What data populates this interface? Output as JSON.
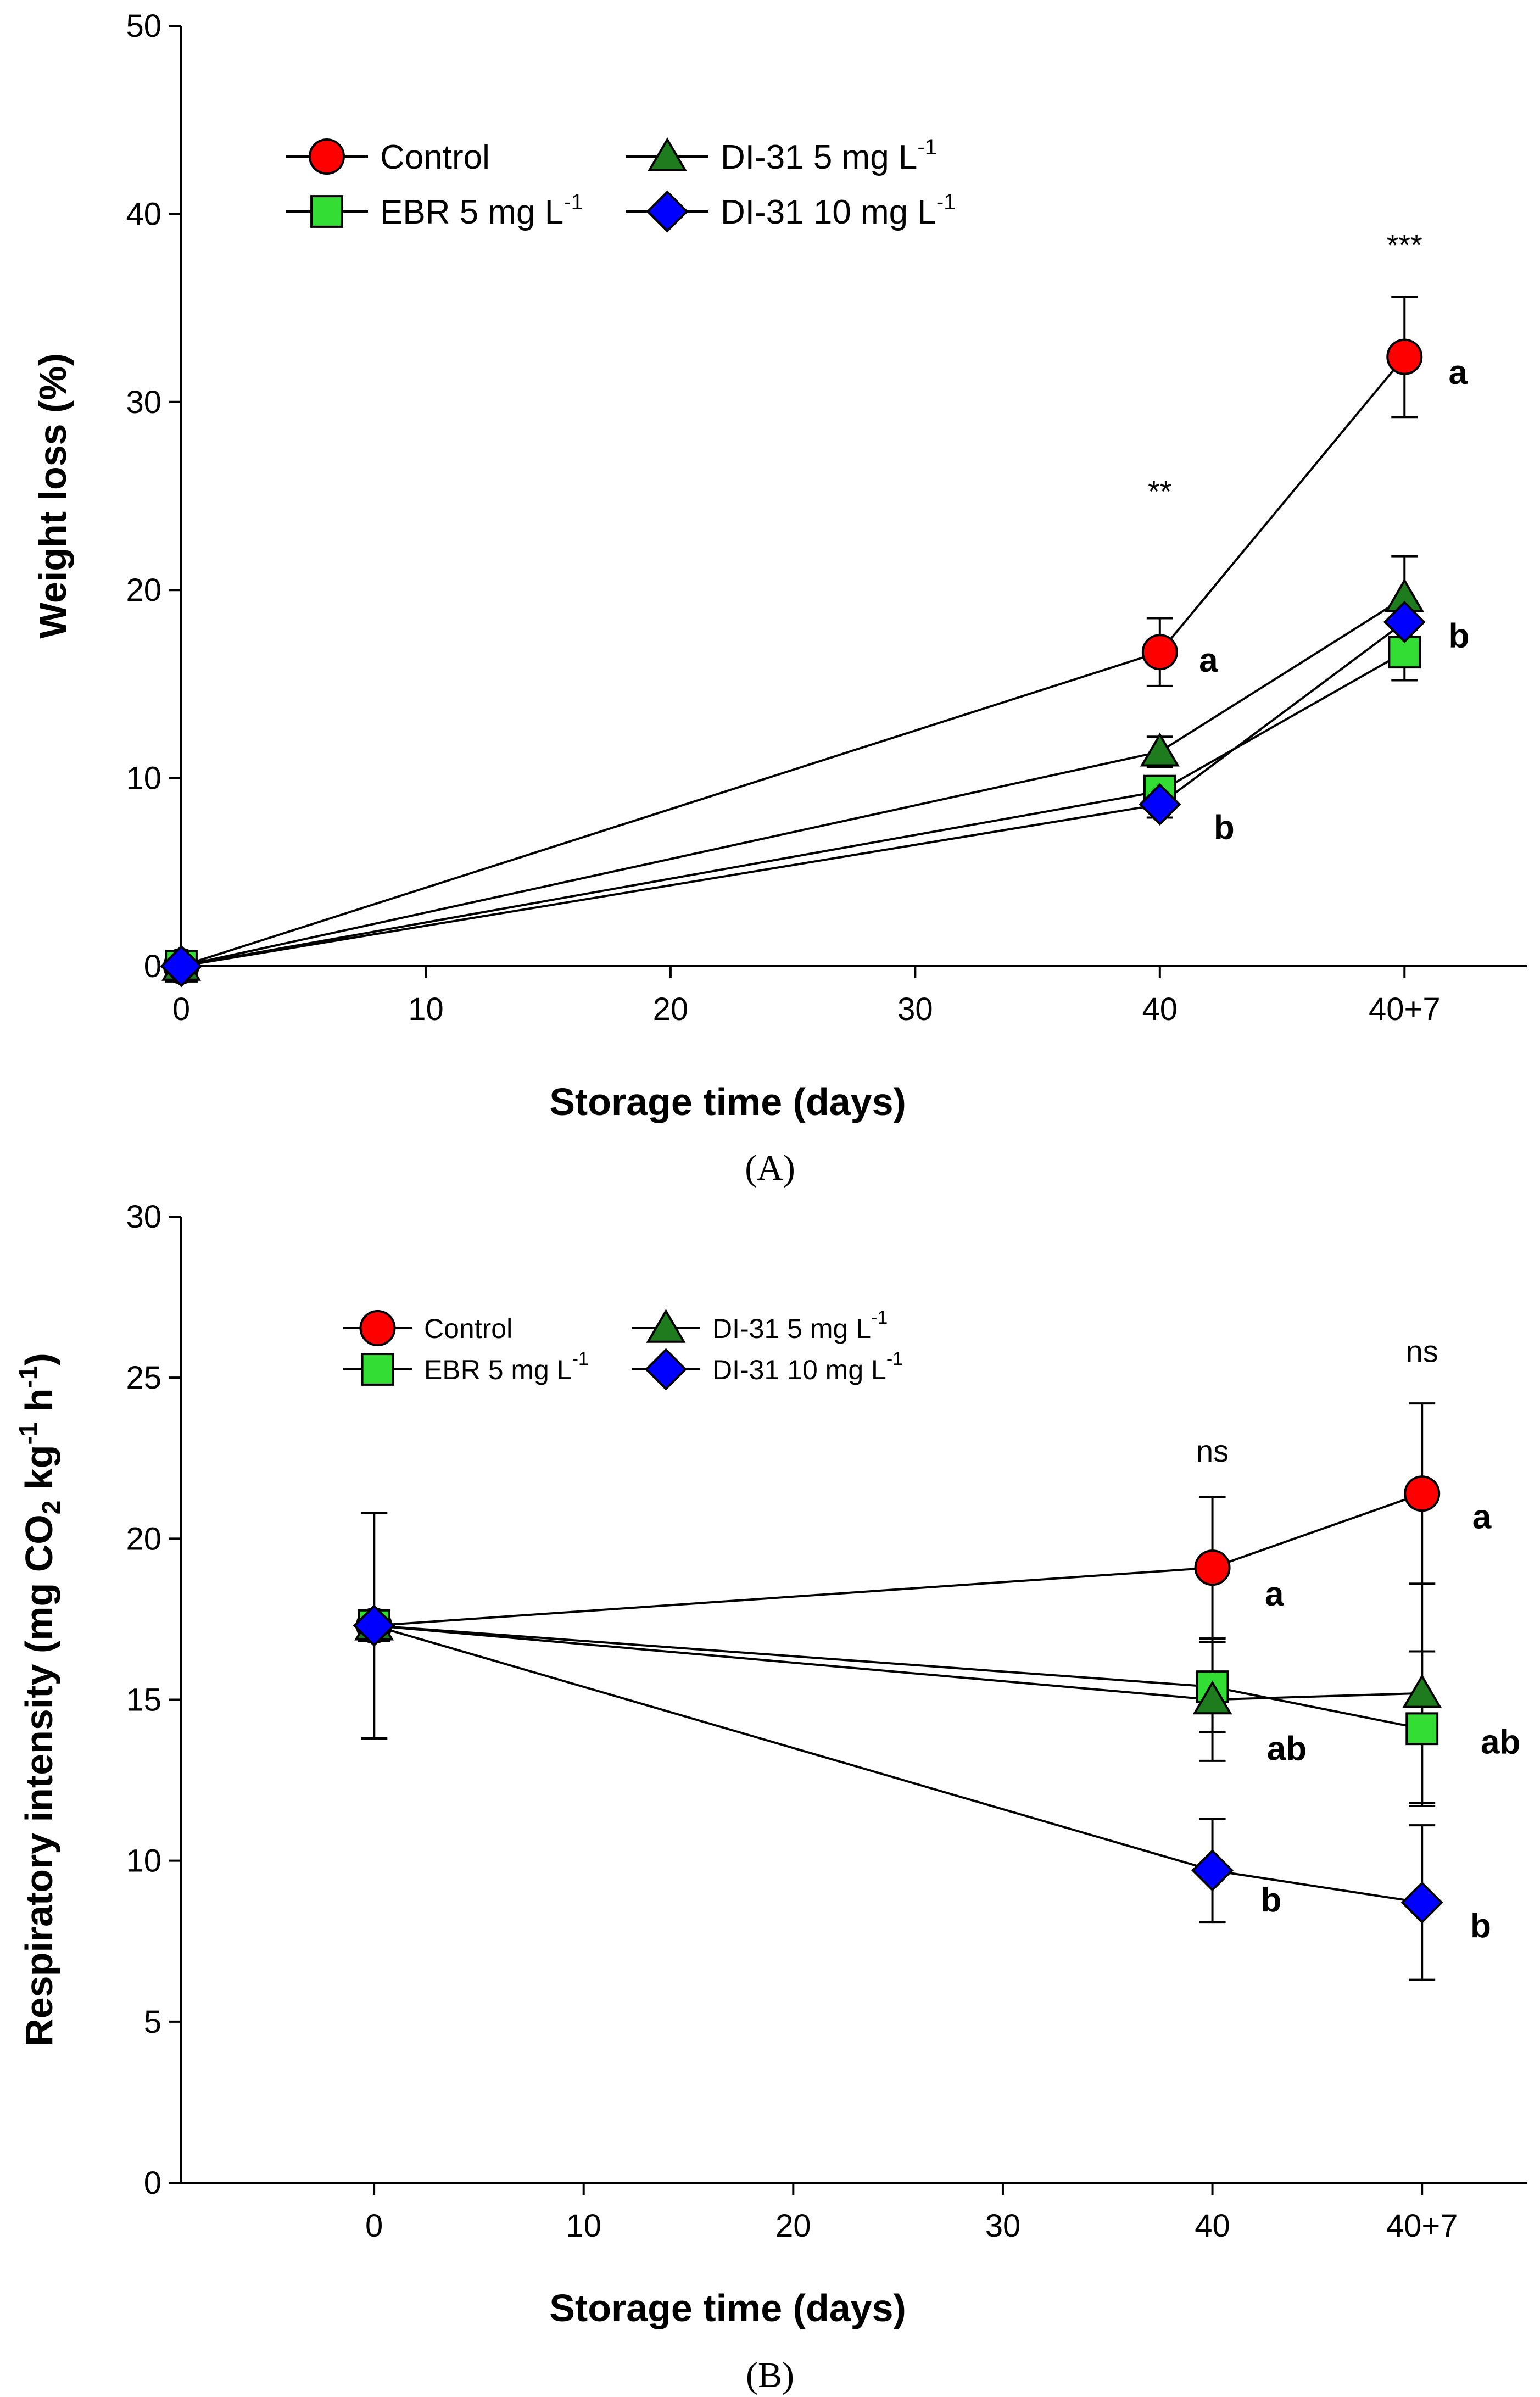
{
  "chart_data": [
    {
      "type": "line",
      "panel_label": "(A)",
      "panel_label_letter": "A",
      "xlabel": "Storage time (days)",
      "ylabel": "Weight loss (%)",
      "ylim": [
        0,
        50
      ],
      "y_ticks": [
        0,
        10,
        20,
        30,
        40,
        50
      ],
      "xlim": [
        0,
        55
      ],
      "x_ticks": [
        0,
        10,
        20,
        30,
        40,
        50
      ],
      "x_tick_labels": [
        "0",
        "10",
        "20",
        "30",
        "40",
        "40+7"
      ],
      "x": [
        0,
        40,
        50
      ],
      "series": [
        {
          "name": "Control",
          "marker": "circle",
          "color": "#ff0000",
          "values": [
            0,
            16.7,
            32.4
          ],
          "errors": [
            0,
            1.8,
            3.2
          ]
        },
        {
          "name": "EBR 5 mg L-1",
          "marker": "square",
          "color": "#33dd33",
          "values": [
            0,
            9.3,
            16.7
          ],
          "errors": [
            0,
            0.8,
            1.5
          ]
        },
        {
          "name": "DI-31 5 mg L-1",
          "marker": "triangle",
          "color": "#1e7b1e",
          "values": [
            0,
            11.4,
            19.6
          ],
          "errors": [
            0,
            0.8,
            2.2
          ]
        },
        {
          "name": "DI-31 10 mg L-1",
          "marker": "diamond",
          "color": "#0000ff",
          "values": [
            0,
            8.6,
            18.3
          ],
          "errors": [
            0,
            0.7,
            0.4
          ]
        }
      ],
      "legend": [
        {
          "name": "Control",
          "label": "Control",
          "sup": ""
        },
        {
          "name": "EBR 5 mg L-1",
          "label": "EBR 5 mg L",
          "sup": "-1"
        },
        {
          "name": "DI-31 5 mg L-1",
          "label": "DI-31 5 mg L",
          "sup": "-1"
        },
        {
          "name": "DI-31 10 mg L-1",
          "label": "DI-31 10 mg L",
          "sup": "-1"
        }
      ],
      "annotations": [
        {
          "text": "**",
          "x": 40,
          "y": 25.2,
          "kind": "sig"
        },
        {
          "text": "***",
          "x": 50,
          "y": 38.3,
          "kind": "sig"
        },
        {
          "text": "a",
          "x": 41.6,
          "y": 16.3,
          "kind": "letter"
        },
        {
          "text": "b",
          "x": 42.2,
          "y": 7.4,
          "kind": "letter"
        },
        {
          "text": "a",
          "x": 51.8,
          "y": 31.6,
          "kind": "letter"
        },
        {
          "text": "b",
          "x": 51.8,
          "y": 17.6,
          "kind": "letter"
        }
      ]
    },
    {
      "type": "line",
      "panel_label": "(B)",
      "panel_label_letter": "B",
      "xlabel": "Storage time (days)",
      "ylabel": "Respiratory intensity (mg CO2 kg-1 h-1)",
      "ylabel_parts": {
        "prefix": "Respiratory intensity (mg CO",
        "co2_sub": "2",
        "mid": " kg",
        "kg_sup": "-1",
        "h": " h",
        "h_sup": "-1",
        "suffix": ")"
      },
      "ylim": [
        0,
        30
      ],
      "y_ticks": [
        0,
        5,
        10,
        15,
        20,
        25,
        30
      ],
      "xlim": [
        -9.2,
        55
      ],
      "x_ticks": [
        0,
        10,
        20,
        30,
        40,
        50
      ],
      "x_tick_labels": [
        "0",
        "10",
        "20",
        "30",
        "40",
        "40+7"
      ],
      "x": [
        0,
        40,
        50
      ],
      "series": [
        {
          "name": "Control",
          "marker": "circle",
          "color": "#ff0000",
          "values": [
            17.3,
            19.1,
            21.4
          ],
          "errors": [
            3.5,
            2.2,
            2.8
          ]
        },
        {
          "name": "EBR 5 mg L-1",
          "marker": "square",
          "color": "#33dd33",
          "values": [
            17.3,
            15.4,
            14.1
          ],
          "errors": [
            3.5,
            1.4,
            2.4
          ]
        },
        {
          "name": "DI-31 5 mg L-1",
          "marker": "triangle",
          "color": "#1e7b1e",
          "values": [
            17.3,
            15.0,
            15.2
          ],
          "errors": [
            3.5,
            1.9,
            3.4
          ]
        },
        {
          "name": "DI-31 10 mg L-1",
          "marker": "diamond",
          "color": "#0000ff",
          "values": [
            17.3,
            9.7,
            8.7
          ],
          "errors": [
            3.5,
            1.6,
            2.4
          ]
        }
      ],
      "legend": [
        {
          "name": "Control",
          "label": "Control",
          "sup": ""
        },
        {
          "name": "EBR 5 mg L-1",
          "label": "EBR 5 mg L",
          "sup": "-1"
        },
        {
          "name": "DI-31 5 mg L-1",
          "label": "DI-31 5 mg L",
          "sup": "-1"
        },
        {
          "name": "DI-31 10 mg L-1",
          "label": "DI-31 10 mg L",
          "sup": "-1"
        }
      ],
      "annotations": [
        {
          "text": "ns",
          "x": 40,
          "y": 22.7,
          "kind": "sig"
        },
        {
          "text": "ns",
          "x": 50,
          "y": 25.8,
          "kind": "sig"
        },
        {
          "text": "a",
          "x": 42.5,
          "y": 18.3,
          "kind": "letter"
        },
        {
          "text": "ab",
          "x": 42.6,
          "y": 13.5,
          "kind": "letter"
        },
        {
          "text": "b",
          "x": 42.3,
          "y": 8.8,
          "kind": "letter"
        },
        {
          "text": "a",
          "x": 52.4,
          "y": 20.7,
          "kind": "letter"
        },
        {
          "text": "ab",
          "x": 52.8,
          "y": 13.7,
          "kind": "letter"
        },
        {
          "text": "b",
          "x": 52.3,
          "y": 8.0,
          "kind": "letter"
        }
      ]
    }
  ]
}
